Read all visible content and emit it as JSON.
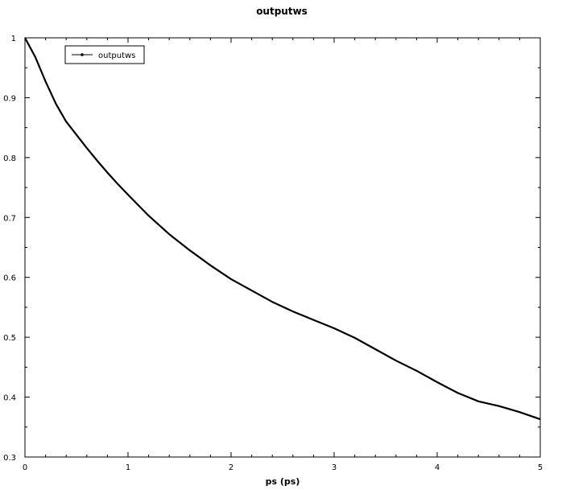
{
  "chart_data": {
    "type": "line",
    "title": "outputws",
    "xlabel": "ps (ps)",
    "ylabel": "",
    "xlim": [
      0,
      5
    ],
    "ylim": [
      0.3,
      1
    ],
    "xticks": [
      "0",
      "1",
      "2",
      "3",
      "4",
      "5"
    ],
    "yticks": [
      "0.3",
      "0.4",
      "0.5",
      "0.6",
      "0.7",
      "0.8",
      "0.9",
      "1"
    ],
    "grid": false,
    "legend_position": "top-left",
    "series": [
      {
        "name": "outputws",
        "color": "#000000",
        "x": [
          0,
          0.1,
          0.2,
          0.3,
          0.4,
          0.5,
          0.6,
          0.7,
          0.8,
          0.9,
          1.0,
          1.2,
          1.4,
          1.6,
          1.8,
          2.0,
          2.2,
          2.4,
          2.6,
          2.8,
          3.0,
          3.2,
          3.4,
          3.6,
          3.8,
          4.0,
          4.2,
          4.4,
          4.6,
          4.8,
          5.0
        ],
        "y": [
          1.0,
          0.968,
          0.927,
          0.89,
          0.86,
          0.838,
          0.816,
          0.795,
          0.775,
          0.756,
          0.738,
          0.703,
          0.672,
          0.645,
          0.62,
          0.597,
          0.578,
          0.559,
          0.543,
          0.529,
          0.515,
          0.499,
          0.48,
          0.461,
          0.444,
          0.425,
          0.407,
          0.393,
          0.385,
          0.375,
          0.363
        ]
      }
    ]
  }
}
